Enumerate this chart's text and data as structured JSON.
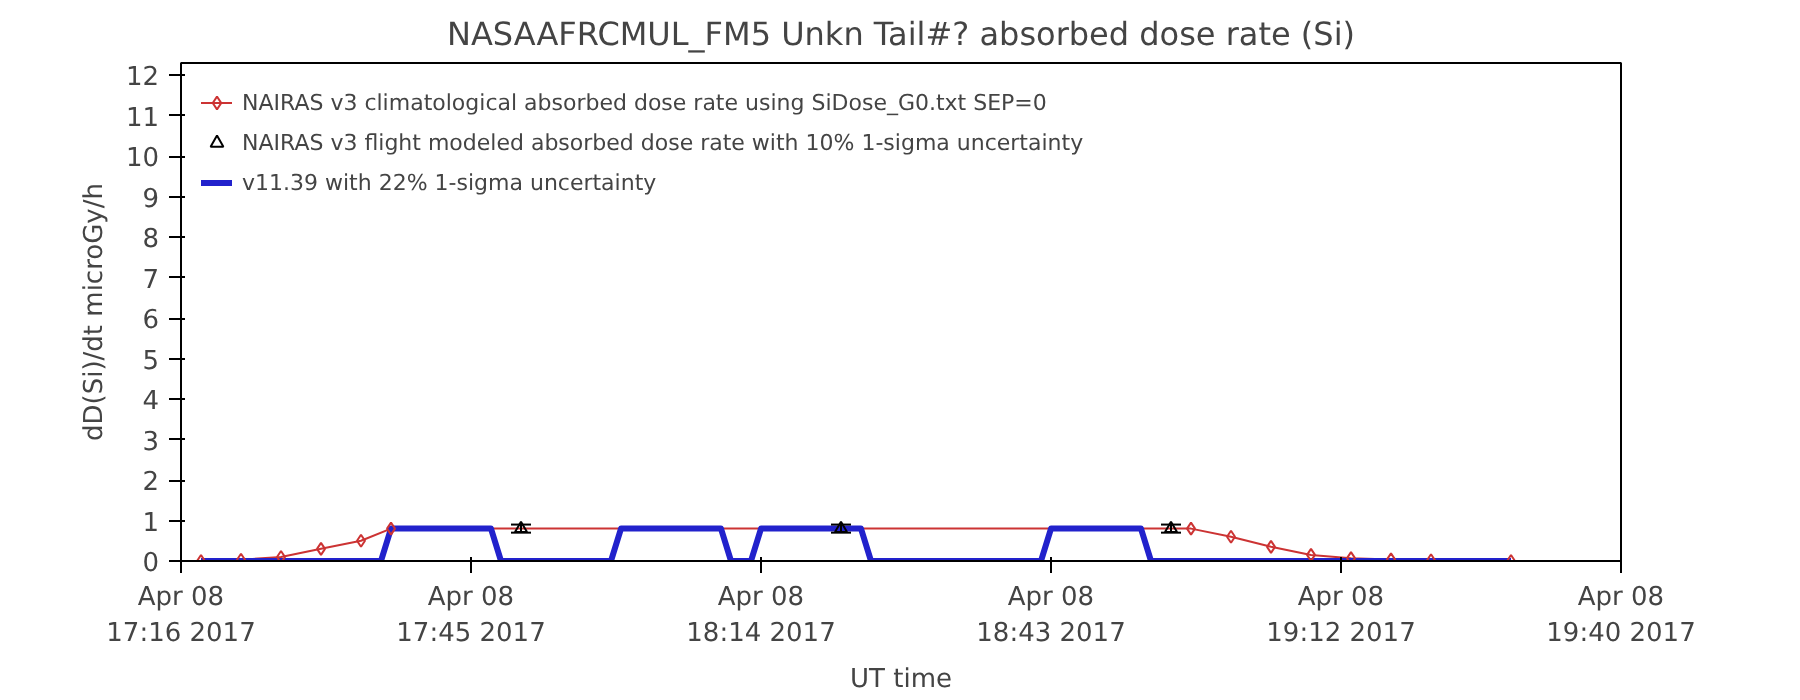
{
  "chart_data": {
    "type": "line",
    "title": "NASAAFRCMUL_FM5 Unkn Tail#? absorbed dose rate (Si)",
    "xlabel": "UT time",
    "ylabel": "dD(Si)/dt microGy/h",
    "xlim": [
      "2017-04-08T17:16",
      "2017-04-08T19:40"
    ],
    "xticks": [
      {
        "value": "2017-04-08T17:16",
        "label": "Apr 08\n17:16 2017"
      },
      {
        "value": "2017-04-08T17:45",
        "label": "Apr 08\n17:45 2017"
      },
      {
        "value": "2017-04-08T18:14",
        "label": "Apr 08\n18:14 2017"
      },
      {
        "value": "2017-04-08T18:43",
        "label": "Apr 08\n18:43 2017"
      },
      {
        "value": "2017-04-08T19:12",
        "label": "Apr 08\n19:12 2017"
      },
      {
        "value": "2017-04-08T19:40",
        "label": "Apr 08\n19:40 2017"
      }
    ],
    "ylim": [
      0,
      12.3
    ],
    "yticks": [
      0,
      1,
      2,
      3,
      4,
      5,
      6,
      7,
      8,
      9,
      10,
      11,
      12
    ],
    "grid": false,
    "legend": "top left",
    "series": [
      {
        "name": "NAIRAS v3 climatological absorbed dose rate using SiDose_G0.txt SEP=0",
        "marker": "diamond",
        "color": "#cc3333",
        "x": [
          "2017-04-08T17:18",
          "2017-04-08T17:22",
          "2017-04-08T17:26",
          "2017-04-08T17:30",
          "2017-04-08T17:34",
          "2017-04-08T17:37",
          "2017-04-08T18:57",
          "2017-04-08T19:01",
          "2017-04-08T19:05",
          "2017-04-08T19:09",
          "2017-04-08T19:13",
          "2017-04-08T19:17",
          "2017-04-08T19:21",
          "2017-04-08T19:29"
        ],
        "values": [
          0,
          0.03,
          0.1,
          0.3,
          0.5,
          0.8,
          0.8,
          0.6,
          0.35,
          0.15,
          0.07,
          0.04,
          0.02,
          0
        ]
      },
      {
        "name": "NAIRAS v3 flight modeled absorbed dose rate with 10% 1-sigma uncertainty",
        "type": "scatter",
        "marker": "triangle",
        "color": "#000000",
        "x": [
          "2017-04-08T17:50",
          "2017-04-08T18:22",
          "2017-04-08T18:55"
        ],
        "values": [
          0.8,
          0.8,
          0.8
        ],
        "errors": [
          0.1,
          0.1,
          0.1
        ]
      },
      {
        "name": "v11.39 with 22% 1-sigma uncertainty",
        "type": "line",
        "marker": "none",
        "color": "#2222cc",
        "x": [
          "2017-04-08T17:18",
          "2017-04-08T17:36",
          "2017-04-08T17:37",
          "2017-04-08T17:47",
          "2017-04-08T17:48",
          "2017-04-08T17:59",
          "2017-04-08T18:00",
          "2017-04-08T18:10",
          "2017-04-08T18:11",
          "2017-04-08T18:13",
          "2017-04-08T18:14",
          "2017-04-08T18:24",
          "2017-04-08T18:25",
          "2017-04-08T18:42",
          "2017-04-08T18:43",
          "2017-04-08T18:52",
          "2017-04-08T18:53",
          "2017-04-08T19:29"
        ],
        "values": [
          0,
          0,
          0.8,
          0.8,
          0,
          0,
          0.8,
          0.8,
          0,
          0,
          0.8,
          0.8,
          0,
          0,
          0.8,
          0.8,
          0,
          0
        ]
      }
    ]
  }
}
